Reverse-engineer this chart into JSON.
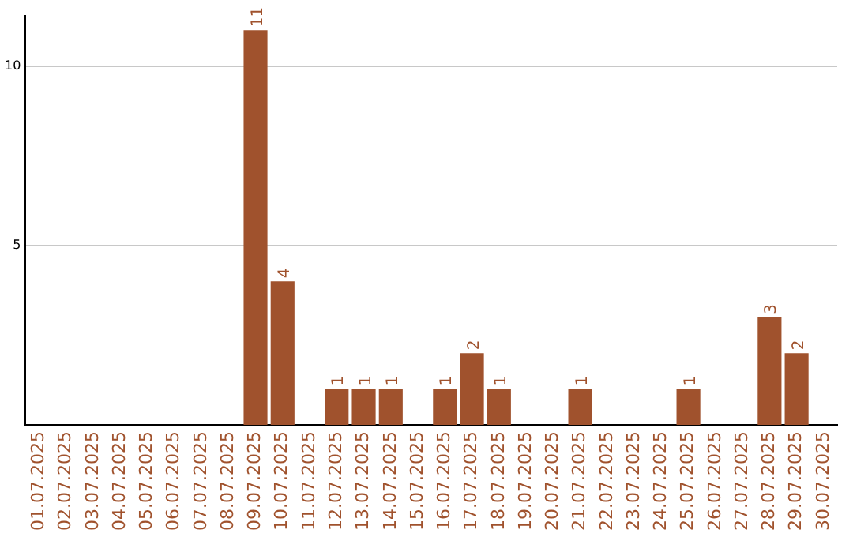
{
  "chart_data": {
    "type": "bar",
    "categories": [
      "01.07.2025",
      "02.07.2025",
      "03.07.2025",
      "04.07.2025",
      "05.07.2025",
      "06.07.2025",
      "07.07.2025",
      "08.07.2025",
      "09.07.2025",
      "10.07.2025",
      "11.07.2025",
      "12.07.2025",
      "13.07.2025",
      "14.07.2025",
      "15.07.2025",
      "16.07.2025",
      "17.07.2025",
      "18.07.2025",
      "19.07.2025",
      "20.07.2025",
      "21.07.2025",
      "22.07.2025",
      "23.07.2025",
      "24.07.2025",
      "25.07.2025",
      "26.07.2025",
      "27.07.2025",
      "28.07.2025",
      "29.07.2025",
      "30.07.2025"
    ],
    "values": [
      0,
      0,
      0,
      0,
      0,
      0,
      0,
      0,
      11,
      4,
      0,
      1,
      1,
      1,
      0,
      1,
      2,
      1,
      0,
      0,
      1,
      0,
      0,
      0,
      1,
      0,
      0,
      3,
      2,
      0
    ],
    "value_labels": [
      null,
      null,
      null,
      null,
      null,
      null,
      null,
      null,
      "11",
      "4",
      null,
      "1",
      "1",
      "1",
      null,
      "1",
      "2",
      "1",
      null,
      null,
      "1",
      null,
      null,
      null,
      "1",
      null,
      null,
      "3",
      "2",
      null
    ],
    "color": "#a0522d",
    "ylim": [
      0,
      11.4
    ],
    "yticks": [
      5,
      10
    ],
    "grid": "y",
    "legend": false
  }
}
